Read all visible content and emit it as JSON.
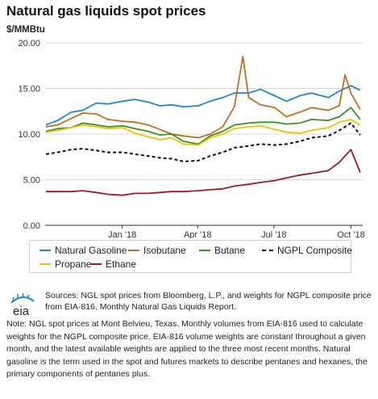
{
  "header": {
    "title": "Natural gas liquids spot prices",
    "unit": "$/MMBtu"
  },
  "chart_data": {
    "type": "line",
    "title": "Natural gas liquids spot prices",
    "ylabel": "$/MMBtu",
    "xlabel": "",
    "ylim": [
      0,
      20
    ],
    "yticks": [
      "0.00",
      "5.00",
      "10.00",
      "15.00",
      "20.00"
    ],
    "xlim": [
      "2017-10-01",
      "2018-10-15"
    ],
    "xticks": [
      {
        "date": "2018-01-01",
        "label": "Jan '18"
      },
      {
        "date": "2018-04-01",
        "label": "Apr '18"
      },
      {
        "date": "2018-07-01",
        "label": "Jul '18"
      },
      {
        "date": "2018-10-01",
        "label": "Oct '18"
      }
    ],
    "grid": "horizontal",
    "legend_position": "bottom",
    "series": [
      {
        "name": "Natural Gasoline",
        "color": "#1f87d1",
        "style": "solid",
        "x": [
          "2017-10-02",
          "2017-10-16",
          "2017-11-01",
          "2017-11-15",
          "2017-12-01",
          "2017-12-15",
          "2018-01-02",
          "2018-01-16",
          "2018-02-01",
          "2018-02-15",
          "2018-03-01",
          "2018-03-15",
          "2018-04-02",
          "2018-04-16",
          "2018-05-01",
          "2018-05-15",
          "2018-06-01",
          "2018-06-15",
          "2018-07-02",
          "2018-07-16",
          "2018-08-01",
          "2018-08-15",
          "2018-09-04",
          "2018-09-17",
          "2018-10-01",
          "2018-10-12"
        ],
        "y": [
          11.0,
          11.5,
          12.4,
          12.6,
          13.4,
          13.3,
          13.6,
          13.8,
          13.5,
          13.1,
          13.2,
          13.0,
          13.1,
          13.6,
          14.0,
          14.5,
          14.5,
          14.9,
          14.2,
          13.6,
          14.2,
          14.5,
          14.0,
          14.7,
          15.3,
          14.8
        ]
      },
      {
        "name": "Isobutane",
        "color": "#c0701e",
        "style": "solid",
        "x": [
          "2017-10-02",
          "2017-10-16",
          "2017-11-01",
          "2017-11-15",
          "2017-12-01",
          "2017-12-15",
          "2018-01-02",
          "2018-01-16",
          "2018-02-01",
          "2018-02-15",
          "2018-03-01",
          "2018-03-15",
          "2018-04-02",
          "2018-04-16",
          "2018-05-01",
          "2018-05-15",
          "2018-05-25",
          "2018-06-01",
          "2018-06-15",
          "2018-07-02",
          "2018-07-16",
          "2018-08-01",
          "2018-08-15",
          "2018-09-04",
          "2018-09-17",
          "2018-09-24",
          "2018-10-01",
          "2018-10-12"
        ],
        "y": [
          10.8,
          11.0,
          11.7,
          12.3,
          12.2,
          11.6,
          11.4,
          11.3,
          11.0,
          10.5,
          10.0,
          9.8,
          9.6,
          10.0,
          10.8,
          13.0,
          18.5,
          14.0,
          13.2,
          12.9,
          11.9,
          12.4,
          12.9,
          12.6,
          13.1,
          16.5,
          14.5,
          12.7
        ]
      },
      {
        "name": "Butane",
        "color": "#3d8f27",
        "style": "solid",
        "x": [
          "2017-10-02",
          "2017-10-16",
          "2017-11-01",
          "2017-11-15",
          "2017-12-01",
          "2017-12-15",
          "2018-01-02",
          "2018-01-16",
          "2018-02-01",
          "2018-02-15",
          "2018-03-01",
          "2018-03-15",
          "2018-04-02",
          "2018-04-16",
          "2018-05-01",
          "2018-05-15",
          "2018-06-01",
          "2018-06-15",
          "2018-07-02",
          "2018-07-16",
          "2018-08-01",
          "2018-08-15",
          "2018-09-04",
          "2018-09-17",
          "2018-10-01",
          "2018-10-12"
        ],
        "y": [
          10.3,
          10.6,
          10.7,
          11.2,
          11.0,
          10.8,
          10.9,
          10.6,
          10.3,
          9.9,
          10.0,
          9.2,
          8.9,
          9.8,
          10.3,
          11.0,
          11.2,
          11.3,
          11.3,
          11.1,
          11.2,
          11.6,
          11.5,
          11.9,
          12.9,
          11.6
        ]
      },
      {
        "name": "NGPL Composite",
        "color": "#111111",
        "style": "dashed",
        "x": [
          "2017-10-02",
          "2017-10-16",
          "2017-11-01",
          "2017-11-15",
          "2017-12-01",
          "2017-12-15",
          "2018-01-02",
          "2018-01-16",
          "2018-02-01",
          "2018-02-15",
          "2018-03-01",
          "2018-03-15",
          "2018-04-02",
          "2018-04-16",
          "2018-05-01",
          "2018-05-15",
          "2018-06-01",
          "2018-06-15",
          "2018-07-02",
          "2018-07-16",
          "2018-08-01",
          "2018-08-15",
          "2018-09-04",
          "2018-09-17",
          "2018-10-01",
          "2018-10-12"
        ],
        "y": [
          7.8,
          8.0,
          8.3,
          8.4,
          8.2,
          8.0,
          8.0,
          7.8,
          7.6,
          7.4,
          7.3,
          7.0,
          7.1,
          7.6,
          8.0,
          8.5,
          8.7,
          8.9,
          8.8,
          8.9,
          9.2,
          9.6,
          9.8,
          10.4,
          11.2,
          9.9
        ]
      },
      {
        "name": "Propane",
        "color": "#f2c200",
        "style": "solid",
        "x": [
          "2017-10-02",
          "2017-10-16",
          "2017-11-01",
          "2017-11-15",
          "2017-12-01",
          "2017-12-15",
          "2018-01-02",
          "2018-01-16",
          "2018-02-01",
          "2018-02-15",
          "2018-03-01",
          "2018-03-15",
          "2018-04-02",
          "2018-04-16",
          "2018-05-01",
          "2018-05-15",
          "2018-06-01",
          "2018-06-15",
          "2018-07-02",
          "2018-07-16",
          "2018-08-01",
          "2018-08-15",
          "2018-09-04",
          "2018-09-17",
          "2018-10-01",
          "2018-10-12"
        ],
        "y": [
          10.2,
          10.4,
          10.7,
          11.0,
          10.8,
          10.6,
          10.7,
          10.1,
          9.7,
          9.4,
          9.6,
          8.9,
          8.8,
          9.6,
          10.0,
          10.6,
          10.8,
          10.9,
          10.5,
          10.2,
          10.1,
          10.4,
          10.7,
          11.3,
          11.6,
          11.0
        ]
      },
      {
        "name": "Ethane",
        "color": "#9b1b1e",
        "style": "solid",
        "x": [
          "2017-10-02",
          "2017-10-16",
          "2017-11-01",
          "2017-11-15",
          "2017-12-01",
          "2017-12-15",
          "2018-01-02",
          "2018-01-16",
          "2018-02-01",
          "2018-02-15",
          "2018-03-01",
          "2018-03-15",
          "2018-04-02",
          "2018-04-16",
          "2018-05-01",
          "2018-05-15",
          "2018-06-01",
          "2018-06-15",
          "2018-07-02",
          "2018-07-16",
          "2018-08-01",
          "2018-08-15",
          "2018-09-04",
          "2018-09-17",
          "2018-10-01",
          "2018-10-12"
        ],
        "y": [
          3.7,
          3.7,
          3.7,
          3.8,
          3.6,
          3.4,
          3.3,
          3.5,
          3.5,
          3.6,
          3.7,
          3.7,
          3.8,
          3.9,
          4.0,
          4.3,
          4.5,
          4.7,
          4.9,
          5.2,
          5.5,
          5.7,
          6.0,
          6.9,
          8.3,
          5.8
        ]
      }
    ]
  },
  "legend": {
    "items": [
      {
        "label": "Natural Gasoline",
        "color": "#1f87d1",
        "dashed": false
      },
      {
        "label": "Isobutane",
        "color": "#c0701e",
        "dashed": false
      },
      {
        "label": "Butane",
        "color": "#3d8f27",
        "dashed": false
      },
      {
        "label": "NGPL Composite",
        "color": "#111111",
        "dashed": true
      },
      {
        "label": "Propane",
        "color": "#f2c200",
        "dashed": false
      },
      {
        "label": "Ethane",
        "color": "#9b1b1e",
        "dashed": false
      }
    ]
  },
  "footer": {
    "logo_text": "eia",
    "sources": "Sources: NGL spot prices from Bloomberg, L.P., and weights for NGPL composite price from EIA-816, Monthly Natural Gas Liquids Report.",
    "note": "Note: NGL spot prices at Mont Belvieu, Texas. Monthly volumes from EIA-816 used to calculate weights for the NGPL composite price. EIA-816 volume weights are constant throughout a given month, and the latest available weights are applied to the three most recent months. Natural gasoline is the term used in the spot and futures markets to describe pentanes and hexanes, the primary components of pentanes plus."
  }
}
